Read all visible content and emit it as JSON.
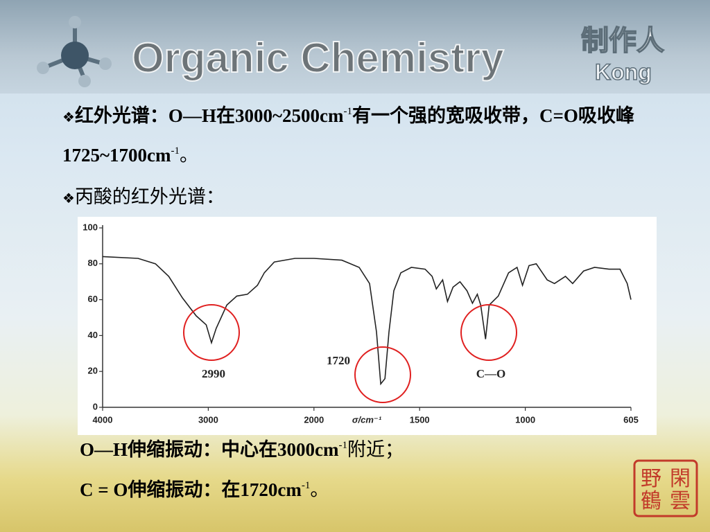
{
  "header": {
    "title": "Organic Chemistry",
    "author_label": "制作人",
    "author": "Kong"
  },
  "bullet": "❖",
  "bullets": [
    {
      "runs": [
        "红外光谱：O—H在3000~2500cm",
        "-1",
        "有一个强的宽吸收带，C=O吸收峰1725~1700cm",
        "-1",
        "。"
      ]
    },
    {
      "runs": [
        "丙酸的红外光谱："
      ]
    }
  ],
  "notes": [
    {
      "runs": [
        "O—H伸缩振动：中心在3000cm",
        "-1",
        "附近；"
      ]
    },
    {
      "runs": [
        "C = O伸缩振动：在1720cm",
        "-1",
        "。"
      ]
    }
  ],
  "stamp": [
    "野",
    "閑",
    "鶴",
    "雲"
  ],
  "chart_data": {
    "type": "line",
    "x_label": "σ/cm⁻¹",
    "x": [
      4000,
      3665,
      3500,
      3375,
      3245,
      3115,
      3020,
      2970,
      2925,
      2825,
      2730,
      2630,
      2535,
      2470,
      2375,
      2180,
      2000,
      1868,
      1786,
      1737,
      1704,
      1684,
      1664,
      1645,
      1622,
      1589,
      1539,
      1474,
      1441,
      1421,
      1391,
      1368,
      1342,
      1309,
      1276,
      1250,
      1227,
      1211,
      1188,
      1171,
      1128,
      1079,
      1039,
      1013,
      986,
      959,
      918,
      891,
      850,
      823,
      782,
      741,
      687,
      646,
      619,
      605
    ],
    "values": [
      84,
      83,
      80,
      73,
      61,
      51,
      46,
      36,
      44,
      57,
      62,
      63,
      68,
      75,
      81,
      83,
      83,
      82,
      78,
      69,
      42,
      13,
      16,
      42,
      65,
      75,
      78,
      77,
      73,
      66,
      71,
      59,
      67,
      70,
      65,
      58,
      63,
      57,
      38,
      57,
      62,
      75,
      78,
      68,
      79,
      80,
      71,
      69,
      73,
      69,
      76,
      78,
      77,
      77,
      69,
      60
    ],
    "color": "#222222",
    "xlim": [
      4000,
      605
    ],
    "xticks": [
      4000,
      3000,
      2000,
      1500,
      1000,
      605
    ],
    "ylim": [
      0,
      100
    ],
    "yticks": [
      0,
      20,
      40,
      60,
      80,
      100
    ],
    "annotations": [
      "2990",
      "1720",
      "C—O"
    ]
  }
}
